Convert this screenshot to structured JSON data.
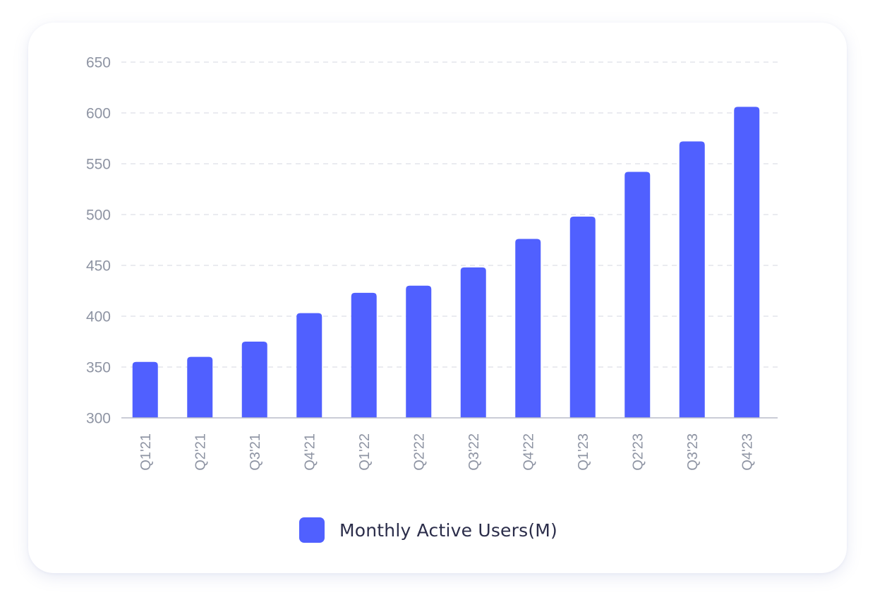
{
  "colors": {
    "bar": "#5060ff",
    "grid": "#dddfe6",
    "tick_text": "#8e94a3",
    "legend_text": "#2b2d4a"
  },
  "chart_data": {
    "type": "bar",
    "categories": [
      "Q1'21",
      "Q2'21",
      "Q3'21",
      "Q4'21",
      "Q1'22",
      "Q2'22",
      "Q3'22",
      "Q4'22",
      "Q1'23",
      "Q2'23",
      "Q3'23",
      "Q4'23"
    ],
    "series": [
      {
        "name": "Monthly Active Users(M)",
        "values": [
          355,
          360,
          375,
          403,
          423,
          430,
          448,
          476,
          498,
          542,
          572,
          606
        ]
      }
    ],
    "ylim": [
      300,
      650
    ],
    "yticks": [
      300,
      350,
      400,
      450,
      500,
      550,
      600,
      650
    ],
    "grid": true,
    "legend_position": "bottom-center",
    "category_label_rotation": "vertical"
  },
  "legend": {
    "label": "Monthly Active Users(M)"
  }
}
